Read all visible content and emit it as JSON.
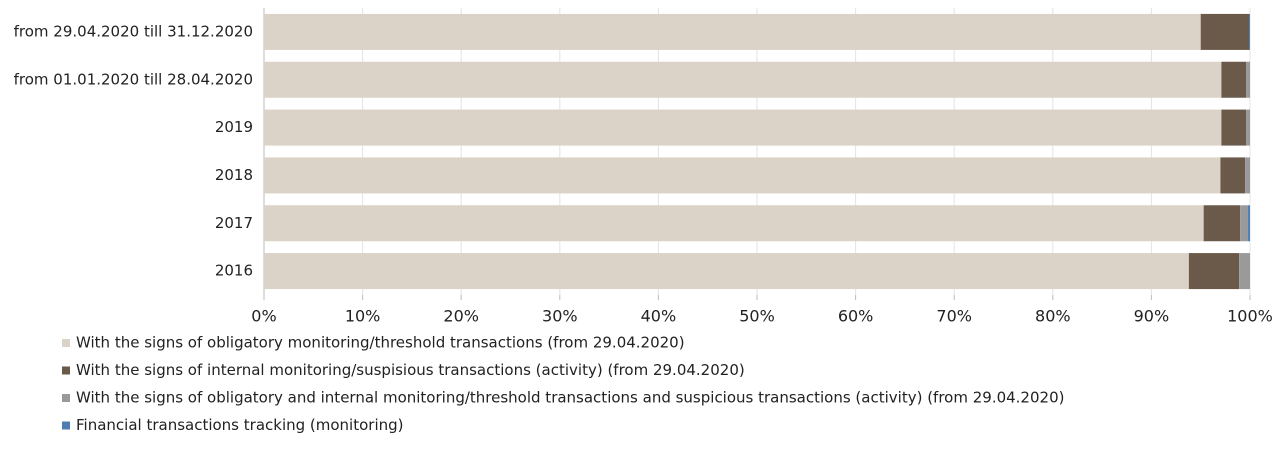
{
  "chart_data": {
    "type": "stacked-barh",
    "categories": [
      "from 29.04.2020 till 31.12.2020",
      "from 01.01.2020 till 28.04.2020",
      "2019",
      "2018",
      "2017",
      "2016"
    ],
    "series": [
      {
        "name": "With the signs of obligatory monitoring/threshold transactions (from 29.04.2020)",
        "color": "#dcd3c8",
        "values": [
          95.0,
          97.1,
          97.1,
          97.0,
          95.3,
          93.8
        ]
      },
      {
        "name": "With the signs of internal monitoring/suspisious transactions (activity) (from 29.04.2020)",
        "color": "#6b5a4a",
        "values": [
          4.9,
          2.5,
          2.5,
          2.5,
          3.7,
          5.1
        ]
      },
      {
        "name": "With the signs of obligatory and internal monitoring/threshold transactions and suspicious transactions (activity) (from 29.04.2020)",
        "color": "#9a9a9a",
        "values": [
          0,
          0.4,
          0.4,
          0.5,
          0.8,
          1.1
        ]
      },
      {
        "name": "Financial transactions tracking (monitoring)",
        "color": "#4f7fb0",
        "values": [
          0.1,
          0,
          0,
          0,
          0.2,
          0
        ]
      }
    ],
    "xlim": [
      0,
      100
    ],
    "xticks": [
      {
        "value": 0,
        "label": "0%"
      },
      {
        "value": 10,
        "label": "10%"
      },
      {
        "value": 20,
        "label": "20%"
      },
      {
        "value": 30,
        "label": "30%"
      },
      {
        "value": 40,
        "label": "40%"
      },
      {
        "value": 50,
        "label": "50%"
      },
      {
        "value": 60,
        "label": "60%"
      },
      {
        "value": 70,
        "label": "70%"
      },
      {
        "value": 80,
        "label": "80%"
      },
      {
        "value": 90,
        "label": "90%"
      },
      {
        "value": 100,
        "label": "100%"
      }
    ],
    "grid": true,
    "legend": "bottom"
  }
}
